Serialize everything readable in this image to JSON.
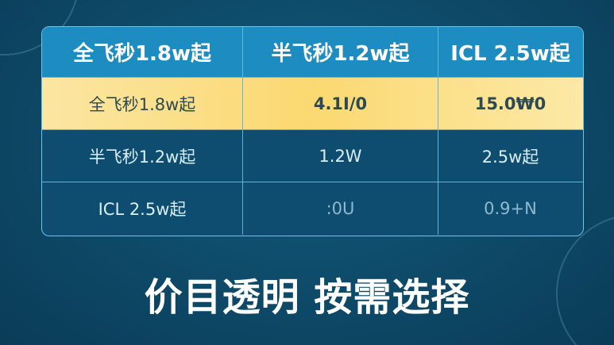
{
  "table": {
    "headers": [
      "全飞秒1.8w起",
      "半飞秒1.2w起",
      "ICL 2.5w起"
    ],
    "rows": [
      [
        "全飞秒1.8w起",
        "4.1I/0",
        "15.0₩0"
      ],
      [
        "半飞秒1.2w起",
        "1.2W",
        "2.5w起"
      ],
      [
        "ICL 2.5w起",
        ":0U",
        "0.9+N"
      ]
    ]
  },
  "slogan": "价目透明 按需选择",
  "colors": {
    "background": "#0d4866",
    "header": "#1d8cc0",
    "highlight": "#fbd971",
    "border": "#5fb6dc"
  }
}
